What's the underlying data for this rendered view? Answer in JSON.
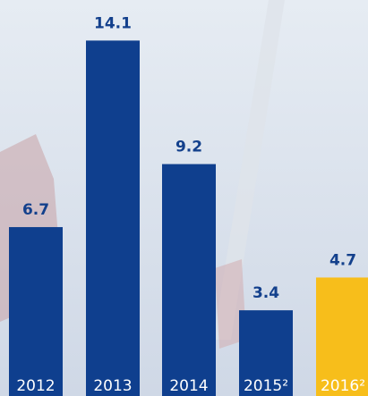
{
  "chart_data": {
    "type": "bar",
    "categories": [
      "2012",
      "2013",
      "2014",
      "2015²",
      "2016²"
    ],
    "values": [
      6.7,
      14.1,
      9.2,
      3.4,
      4.7
    ],
    "colors": [
      "#0f3f8e",
      "#0f3f8e",
      "#0f3f8e",
      "#0f3f8e",
      "#f7be1b"
    ]
  }
}
